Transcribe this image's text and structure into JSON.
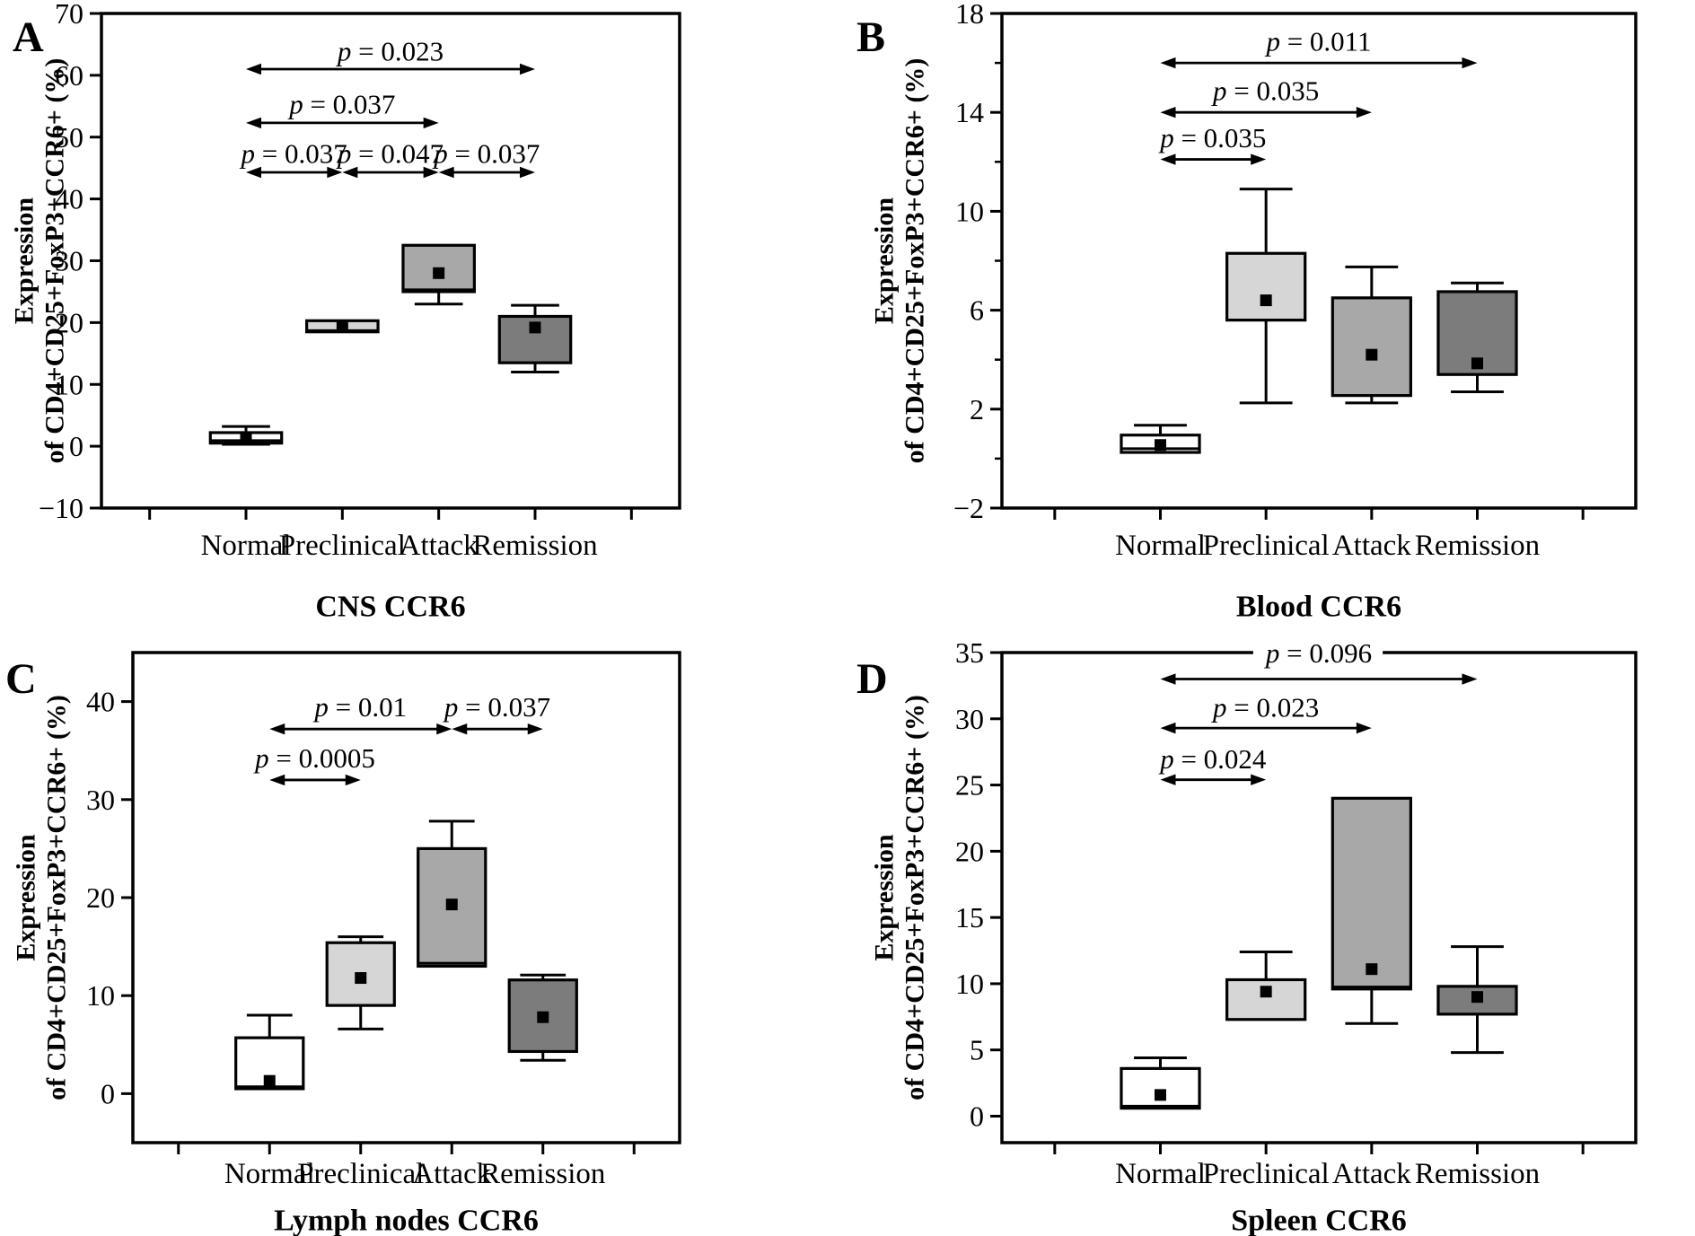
{
  "figure_title": "CCR6 Treg expression box plots",
  "colors": {
    "background": "#ffffff",
    "line": "#000000",
    "mean_marker": "#000000",
    "box_normal": "#ffffff",
    "box_preclinical": "#d6d6d6",
    "box_attack": "#a8a8a8",
    "box_remission": "#7c7c7c"
  },
  "chart_data": [
    {
      "id": "A",
      "panel_label": "A",
      "type": "box",
      "title": "CNS CCR6",
      "ylabel_lines": [
        "Expression",
        "of CD4+CD25+FoxP3+CCR6+ (%)"
      ],
      "categories": [
        "Normal",
        "Preclinical",
        "Attack",
        "Remission"
      ],
      "frame_range": [
        -10,
        70
      ],
      "yticks": [
        -10,
        0,
        10,
        20,
        30,
        40,
        50,
        60,
        70
      ],
      "yminor": [],
      "grid": false,
      "boxes": [
        {
          "category": "Normal",
          "color": "box_normal",
          "whisker_low": 0.3,
          "q1": 0.5,
          "median": 0.9,
          "q3": 2.2,
          "whisker_high": 3.2,
          "mean": 1.2
        },
        {
          "category": "Preclinical",
          "color": "box_preclinical",
          "whisker_low": 18.5,
          "q1": 18.5,
          "median": 18.7,
          "q3": 20.3,
          "whisker_high": 20.3,
          "mean": 19.3
        },
        {
          "category": "Attack",
          "color": "box_attack",
          "whisker_low": 23.0,
          "q1": 25.0,
          "median": 25.3,
          "q3": 32.5,
          "whisker_high": 32.5,
          "mean": 28.0
        },
        {
          "category": "Remission",
          "color": "box_remission",
          "whisker_low": 12.0,
          "q1": 13.5,
          "median": null,
          "q3": 21.0,
          "whisker_high": 22.8,
          "mean": 19.2
        }
      ],
      "annotations": [
        {
          "text": "p = 0.023",
          "from": "Normal",
          "to": "Remission",
          "arrow_y": 61.0,
          "label_y": 64.0,
          "label_on_frame": false
        },
        {
          "text": "p = 0.037",
          "from": "Normal",
          "to": "Attack",
          "arrow_y": 52.3,
          "label_y": 55.4,
          "label_on_frame": false
        },
        {
          "text": "p = 0.037",
          "from": "Normal",
          "to": "Preclinical",
          "arrow_y": 44.3,
          "label_y": 47.4,
          "label_on_frame": false
        },
        {
          "text": "p = 0.047",
          "from": "Preclinical",
          "to": "Attack",
          "arrow_y": 44.3,
          "label_y": 47.4,
          "label_on_frame": false
        },
        {
          "text": "p = 0.037",
          "from": "Attack",
          "to": "Remission",
          "arrow_y": 44.3,
          "label_y": 47.4,
          "label_on_frame": false
        }
      ]
    },
    {
      "id": "B",
      "panel_label": "B",
      "type": "box",
      "title": "Blood CCR6",
      "ylabel_lines": [
        "Expression",
        "of CD4+CD25+FoxP3+CCR6+ (%)"
      ],
      "categories": [
        "Normal",
        "Preclinical",
        "Attack",
        "Remission"
      ],
      "frame_range": [
        -2,
        18
      ],
      "yticks": [
        -2,
        2,
        6,
        10,
        14,
        18
      ],
      "yminor": [
        0,
        4,
        8,
        12,
        16
      ],
      "grid": false,
      "boxes": [
        {
          "category": "Normal",
          "color": "box_normal",
          "whisker_low": 0.25,
          "q1": 0.25,
          "median": 0.4,
          "q3": 0.95,
          "whisker_high": 1.35,
          "mean": 0.55
        },
        {
          "category": "Preclinical",
          "color": "box_preclinical",
          "whisker_low": 2.25,
          "q1": 5.6,
          "median": null,
          "q3": 8.3,
          "whisker_high": 10.9,
          "mean": 6.4
        },
        {
          "category": "Attack",
          "color": "box_attack",
          "whisker_low": 2.25,
          "q1": 2.55,
          "median": null,
          "q3": 6.5,
          "whisker_high": 7.75,
          "mean": 4.2
        },
        {
          "category": "Remission",
          "color": "box_remission",
          "whisker_low": 2.7,
          "q1": 3.4,
          "median": null,
          "q3": 6.75,
          "whisker_high": 7.1,
          "mean": 3.85
        }
      ],
      "annotations": [
        {
          "text": "p = 0.011",
          "from": "Normal",
          "to": "Remission",
          "arrow_y": 16.0,
          "label_y": 16.9,
          "label_on_frame": false
        },
        {
          "text": "p = 0.035",
          "from": "Normal",
          "to": "Attack",
          "arrow_y": 14.0,
          "label_y": 14.9,
          "label_on_frame": false
        },
        {
          "text": "p = 0.035",
          "from": "Normal",
          "to": "Preclinical",
          "arrow_y": 12.1,
          "label_y": 13.0,
          "label_on_frame": false
        }
      ]
    },
    {
      "id": "C",
      "panel_label": "C",
      "type": "box",
      "title": "Lymph nodes CCR6",
      "ylabel_lines": [
        "Expression",
        "of CD4+CD25+FoxP3+CCR6+ (%)"
      ],
      "categories": [
        "Normal",
        "Preclinical",
        "Attack",
        "Remission"
      ],
      "frame_range": [
        -5,
        45
      ],
      "yticks": [
        0,
        10,
        20,
        30,
        40
      ],
      "yminor": [],
      "grid": false,
      "boxes": [
        {
          "category": "Normal",
          "color": "box_normal",
          "whisker_low": 0.5,
          "q1": 0.5,
          "median": 0.7,
          "q3": 5.7,
          "whisker_high": 8.0,
          "mean": 1.3
        },
        {
          "category": "Preclinical",
          "color": "box_preclinical",
          "whisker_low": 6.6,
          "q1": 9.0,
          "median": null,
          "q3": 15.4,
          "whisker_high": 16.0,
          "mean": 11.8
        },
        {
          "category": "Attack",
          "color": "box_attack",
          "whisker_low": 13.0,
          "q1": 13.0,
          "median": 13.3,
          "q3": 25.0,
          "whisker_high": 27.8,
          "mean": 19.3
        },
        {
          "category": "Remission",
          "color": "box_remission",
          "whisker_low": 3.4,
          "q1": 4.3,
          "median": null,
          "q3": 11.6,
          "whisker_high": 12.1,
          "mean": 7.8
        }
      ],
      "annotations": [
        {
          "text": "p = 0.01",
          "from": "Normal",
          "to": "Attack",
          "arrow_y": 37.2,
          "label_y": 39.5,
          "label_on_frame": false
        },
        {
          "text": "p = 0.037",
          "from": "Attack",
          "to": "Remission",
          "arrow_y": 37.2,
          "label_y": 39.5,
          "label_on_frame": false
        },
        {
          "text": "p = 0.0005",
          "from": "Normal",
          "to": "Preclinical",
          "arrow_y": 32.0,
          "label_y": 34.3,
          "label_on_frame": false
        }
      ]
    },
    {
      "id": "D",
      "panel_label": "D",
      "type": "box",
      "title": "Spleen CCR6",
      "ylabel_lines": [
        "Expression",
        "of CD4+CD25+FoxP3+CCR6+ (%)"
      ],
      "categories": [
        "Normal",
        "Preclinical",
        "Attack",
        "Remission"
      ],
      "frame_range": [
        -2,
        35
      ],
      "yticks": [
        0,
        5,
        10,
        15,
        20,
        25,
        30,
        35
      ],
      "yminor": [],
      "grid": false,
      "boxes": [
        {
          "category": "Normal",
          "color": "box_normal",
          "whisker_low": 0.6,
          "q1": 0.6,
          "median": 0.75,
          "q3": 3.6,
          "whisker_high": 4.4,
          "mean": 1.6
        },
        {
          "category": "Preclinical",
          "color": "box_preclinical",
          "whisker_low": 7.3,
          "q1": 7.3,
          "median": null,
          "q3": 10.3,
          "whisker_high": 12.4,
          "mean": 9.4
        },
        {
          "category": "Attack",
          "color": "box_attack",
          "whisker_low": 7.0,
          "q1": 9.6,
          "median": 9.75,
          "q3": 24.0,
          "whisker_high": 24.0,
          "mean": 11.1
        },
        {
          "category": "Remission",
          "color": "box_remission",
          "whisker_low": 4.8,
          "q1": 7.7,
          "median": null,
          "q3": 9.8,
          "whisker_high": 12.8,
          "mean": 9.0
        }
      ],
      "annotations": [
        {
          "text": "p = 0.096",
          "from": "Normal",
          "to": "Remission",
          "arrow_y": 33.0,
          "label_y": 35.0,
          "label_on_frame": true
        },
        {
          "text": "p = 0.023",
          "from": "Normal",
          "to": "Attack",
          "arrow_y": 29.3,
          "label_y": 30.9,
          "label_on_frame": false
        },
        {
          "text": "p = 0.024",
          "from": "Normal",
          "to": "Preclinical",
          "arrow_y": 25.4,
          "label_y": 27.0,
          "label_on_frame": false
        }
      ]
    }
  ]
}
